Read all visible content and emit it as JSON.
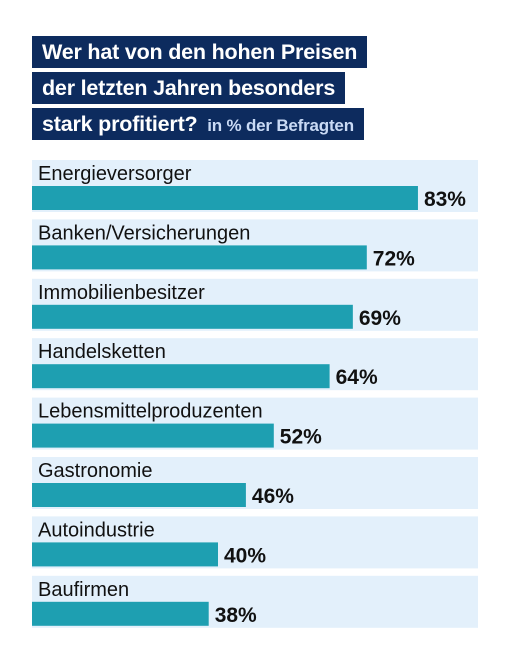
{
  "title": {
    "line1": "Wer hat von den hohen Preisen",
    "line2": "der letzten Jahren besonders",
    "line3": "stark profitiert?",
    "subtitle": "in % der Befragten"
  },
  "colors": {
    "title_bg": "#0d2b5e",
    "row_bg": "#e3f0fb",
    "bar": "#1e9fb1",
    "text": "#111111"
  },
  "chart_data": {
    "type": "bar",
    "orientation": "horizontal",
    "title": "Wer hat von den hohen Preisen der letzten Jahren besonders stark profitiert?",
    "subtitle": "in % der Befragten",
    "categories": [
      "Energieversorger",
      "Banken/Versicherungen",
      "Immobilienbesitzer",
      "Handelsketten",
      "Lebensmittelproduzenten",
      "Gastronomie",
      "Autoindustrie",
      "Baufirmen"
    ],
    "values": [
      83,
      72,
      69,
      64,
      52,
      46,
      40,
      38
    ],
    "value_labels": [
      "83%",
      "72%",
      "69%",
      "64%",
      "52%",
      "46%",
      "40%",
      "38%"
    ],
    "xlim": [
      0,
      100
    ]
  }
}
